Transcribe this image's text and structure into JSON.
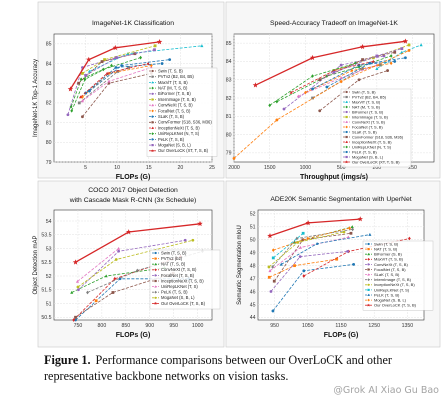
{
  "caption": {
    "prefix": "Figure 1.",
    "text": "Performance comparisons between our OverLoCK and other representative backbone networks on vision tasks."
  },
  "watermark": "@Grok AI Xiao Gu Bao",
  "chart_data": [
    {
      "type": "line",
      "title": "ImageNet-1K Classification",
      "xlabel": "FLOPs (G)",
      "ylabel": "ImageNet-1K Top-1 Accuracy",
      "xlim": [
        0,
        25
      ],
      "ylim": [
        79,
        85.5
      ],
      "xticks": [
        5,
        10,
        15,
        20,
        25
      ],
      "yticks": [
        79,
        80,
        81,
        82,
        83,
        84,
        85
      ],
      "grid": true,
      "legend_position": "right",
      "series": [
        {
          "name": "Swin (T, S, B)",
          "color": "#8c564b",
          "x": [
            4.5,
            8.7,
            15.4
          ],
          "y": [
            81.3,
            83.0,
            83.5
          ]
        },
        {
          "name": "PVTv2 (B2, B4, B5)",
          "color": "#7f7f7f",
          "x": [
            4.0,
            10.1,
            11.8
          ],
          "y": [
            82.0,
            83.6,
            83.8
          ]
        },
        {
          "name": "MaxViT (T, S, B)",
          "color": "#17becf",
          "x": [
            5.6,
            11.7,
            23.4
          ],
          "y": [
            83.6,
            84.5,
            84.9
          ]
        },
        {
          "name": "NAT (M, T, S, B)",
          "color": "#2ca02c",
          "x": [
            2.7,
            4.3,
            7.8,
            13.7
          ],
          "y": [
            81.8,
            83.2,
            83.7,
            84.3
          ]
        },
        {
          "name": "BiFormer (T, S, B)",
          "color": "#9467bd",
          "x": [
            2.2,
            4.5,
            9.8
          ],
          "y": [
            81.4,
            83.8,
            84.3
          ]
        },
        {
          "name": "InternImage (T, S, B)",
          "color": "#bcbd22",
          "x": [
            4.5,
            8.0,
            16.0
          ],
          "y": [
            83.5,
            84.2,
            84.9
          ]
        },
        {
          "name": "ConvNeXt (T, S, B)",
          "color": "#e377c2",
          "x": [
            4.5,
            8.7,
            15.4
          ],
          "y": [
            82.1,
            83.1,
            83.8
          ]
        },
        {
          "name": "FocalNet (T, S, B)",
          "color": "#ff7f0e",
          "x": [
            4.5,
            8.7,
            15.4
          ],
          "y": [
            82.3,
            83.5,
            83.9
          ]
        },
        {
          "name": "SLaK (T, S, B)",
          "color": "#1f77b4",
          "x": [
            5.0,
            9.8,
            17.1
          ],
          "y": [
            82.5,
            83.8,
            84.0
          ]
        },
        {
          "name": "ConvFormer (S18, S36, M36)",
          "color": "#8c564b",
          "x": [
            3.9,
            7.6,
            12.8
          ],
          "y": [
            83.0,
            84.1,
            84.5
          ]
        },
        {
          "name": "InceptionNeXt (T, S, B)",
          "color": "#d62728",
          "x": [
            4.2,
            8.4,
            14.9
          ],
          "y": [
            82.3,
            83.5,
            84.0
          ]
        },
        {
          "name": "UniRepLKNet (N, T, S)",
          "color": "#2ca02c",
          "x": [
            2.8,
            4.9,
            9.1
          ],
          "y": [
            81.6,
            83.2,
            83.9
          ]
        },
        {
          "name": "PeLK (T, S, B)",
          "color": "#1f77b4",
          "x": [
            5.6,
            10.7,
            18.3
          ],
          "y": [
            82.6,
            83.9,
            84.2
          ]
        },
        {
          "name": "MogaNet (S, B, L)",
          "color": "#9467bd",
          "x": [
            5.0,
            9.9,
            15.9
          ],
          "y": [
            83.4,
            84.3,
            84.7
          ]
        },
        {
          "name": "Our OverLoCK (XT, T, S, B)",
          "color": "#d62728",
          "x": [
            2.6,
            5.5,
            9.7,
            16.7
          ],
          "y": [
            82.7,
            84.2,
            84.8,
            85.1
          ]
        }
      ]
    },
    {
      "type": "line",
      "title": "Speed-Accuracy Tradeoff on ImageNet-1K",
      "xlabel": "Throughput (imgs/s)",
      "ylabel": "",
      "xlim": [
        0,
        280
      ],
      "ylim": [
        78.5,
        85.5
      ],
      "xticks": [
        0,
        50,
        100,
        150,
        200,
        250
      ],
      "xticklabels": [
        "2000",
        "1500",
        "1000",
        "500",
        "200",
        "250"
      ],
      "yticks": [
        79,
        80,
        81,
        82,
        83,
        84,
        85
      ],
      "grid": true,
      "legend_position": "right",
      "series": [
        {
          "name": "Swin (T, S, B)",
          "color": "#8c564b",
          "x": [
            120,
            175,
            215
          ],
          "y": [
            81.3,
            83.0,
            83.5
          ]
        },
        {
          "name": "PVTv2 (B2, B4, B5)",
          "color": "#7f7f7f",
          "x": [
            110,
            180,
            205
          ],
          "y": [
            82.0,
            83.6,
            83.8
          ]
        },
        {
          "name": "MaxViT (T, S, B)",
          "color": "#17becf",
          "x": [
            200,
            235,
            262
          ],
          "y": [
            83.6,
            84.5,
            84.9
          ]
        },
        {
          "name": "NAT (M, T, S, B)",
          "color": "#2ca02c",
          "x": [
            60,
            130,
            175,
            220
          ],
          "y": [
            81.8,
            83.2,
            83.7,
            84.3
          ]
        },
        {
          "name": "BiFormer (T, S, B)",
          "color": "#9467bd",
          "x": [
            70,
            150,
            210
          ],
          "y": [
            81.4,
            83.8,
            84.3
          ]
        },
        {
          "name": "InternImage (T, S, B)",
          "color": "#bcbd22",
          "x": [
            140,
            195,
            245
          ],
          "y": [
            83.5,
            84.2,
            84.9
          ]
        },
        {
          "name": "ConvNeXt (T, S, B)",
          "color": "#e377c2",
          "x": [
            90,
            150,
            200
          ],
          "y": [
            82.1,
            83.1,
            83.8
          ]
        },
        {
          "name": "FocalNet (T, S, B)",
          "color": "#ff7f0e",
          "x": [
            100,
            165,
            220
          ],
          "y": [
            82.3,
            83.5,
            83.9
          ]
        },
        {
          "name": "SLaK (T, S, B)",
          "color": "#1f77b4",
          "x": [
            110,
            175,
            225
          ],
          "y": [
            82.5,
            83.8,
            84.0
          ]
        },
        {
          "name": "ConvFormer (S18, S36, M36)",
          "color": "#8c564b",
          "x": [
            120,
            180,
            225
          ],
          "y": [
            83.0,
            84.1,
            84.5
          ]
        },
        {
          "name": "InceptionNeXt (T, S, B)",
          "color": "#d62728",
          "x": [
            80,
            140,
            195
          ],
          "y": [
            82.3,
            83.5,
            84.0
          ]
        },
        {
          "name": "UniRepLKNet (N, T, S)",
          "color": "#2ca02c",
          "x": [
            50,
            110,
            170
          ],
          "y": [
            81.6,
            83.2,
            83.9
          ]
        },
        {
          "name": "PeLK (T, S, B)",
          "color": "#1f77b4",
          "x": [
            130,
            190,
            240
          ],
          "y": [
            82.6,
            83.9,
            84.2
          ]
        },
        {
          "name": "MogaNet (S, B, L)",
          "color": "#9467bd",
          "x": [
            140,
            200,
            235
          ],
          "y": [
            83.4,
            84.3,
            84.7
          ]
        },
        {
          "name": "Our OverLoCK (XT, T, S, B)",
          "color": "#d62728",
          "x": [
            30,
            110,
            180,
            240
          ],
          "y": [
            82.7,
            84.2,
            84.8,
            85.1
          ]
        },
        {
          "name": "",
          "color": "#ff7f0e",
          "x": [
            0,
            60,
            150,
            245
          ],
          "y": [
            78.7,
            80.8,
            82.9,
            84.6
          ]
        }
      ]
    },
    {
      "type": "line",
      "title": "COCO 2017 Object Detection",
      "subtitle": "with Cascade Mask R-CNN (3x Schedule)",
      "xlabel": "FLOPs (G)",
      "ylabel": "Object Detection mAP",
      "xlim": [
        700,
        1030
      ],
      "ylim": [
        50.4,
        54.4
      ],
      "xticks": [
        750,
        800,
        850,
        900,
        950,
        1000
      ],
      "yticks": [
        50.5,
        51.0,
        51.5,
        52.0,
        52.5,
        53.0,
        53.5,
        54.0
      ],
      "grid": true,
      "legend_position": "center-right",
      "series": [
        {
          "name": "Swin (T, S, B)",
          "color": "#1f77b4",
          "x": [
            745,
            838,
            982
          ],
          "y": [
            50.4,
            51.9,
            51.9
          ]
        },
        {
          "name": "PVTv2 (b2)",
          "color": "#ff7f0e",
          "x": [
            788
          ],
          "y": [
            51.1
          ]
        },
        {
          "name": "NAT (T, S, B)",
          "color": "#2ca02c",
          "x": [
            737,
            809,
            931
          ],
          "y": [
            51.4,
            52.0,
            52.3
          ]
        },
        {
          "name": "ConvNeXt (T, S, B)",
          "color": "#d62728",
          "x": [
            741,
            827,
            964
          ],
          "y": [
            50.4,
            51.9,
            52.7
          ]
        },
        {
          "name": "FocalNet (T, S, B)",
          "color": "#9467bd",
          "x": [
            751,
            835,
            974
          ],
          "y": [
            51.5,
            52.9,
            53.3
          ]
        },
        {
          "name": "InceptionNeXt (T, S, B)",
          "color": "#8c564b",
          "x": [
            745,
            823,
            949
          ],
          "y": [
            50.5,
            51.4,
            52.1
          ]
        },
        {
          "name": "UniRepLKNet (T, S)",
          "color": "#e377c2",
          "x": [
            749,
            835
          ],
          "y": [
            51.8,
            53.0
          ]
        },
        {
          "name": "PeLK (T, S, B)",
          "color": "#7f7f7f",
          "x": [
            770,
            874,
            1010
          ],
          "y": [
            51.4,
            52.2,
            52.9
          ]
        },
        {
          "name": "MogaNet (S, B, L)",
          "color": "#bcbd22",
          "x": [
            750,
            830,
            990
          ],
          "y": [
            51.6,
            52.6,
            53.3
          ]
        },
        {
          "name": "Our OverLoCK (T, S, B)",
          "color": "#d62728",
          "x": [
            745,
            856,
            1005
          ],
          "y": [
            52.5,
            53.6,
            53.9
          ]
        }
      ]
    },
    {
      "type": "line",
      "title": "ADE20K Semantic Segmentation with UperNet",
      "xlabel": "FLOPs (G)",
      "ylabel": "Semantic Segmentation mIoU",
      "xlim": [
        900,
        1400
      ],
      "ylim": [
        43.8,
        52.3
      ],
      "xticks": [
        950,
        1050,
        1150,
        1250,
        1350
      ],
      "yticks": [
        44,
        45,
        46,
        47,
        48,
        49,
        50,
        51,
        52
      ],
      "grid": true,
      "legend_position": "right",
      "series": [
        {
          "name": "Swin (T, S, B)",
          "color": "#1f77b4",
          "x": [
            945,
            1038,
            1188
          ],
          "y": [
            44.5,
            47.6,
            48.1
          ]
        },
        {
          "name": "NAT (T, S, B)",
          "color": "#ff7f0e",
          "x": [
            934,
            1010,
            1137
          ],
          "y": [
            47.1,
            48.0,
            48.5
          ]
        },
        {
          "name": "BiFormer (S, B)",
          "color": "#2ca02c",
          "x": [
            1010,
            1184
          ],
          "y": [
            49.8,
            51.0
          ]
        },
        {
          "name": "MaxViT (T, S, B)",
          "color": "#d62728",
          "x": [
            1038,
            1173,
            1356
          ],
          "y": [
            47.2,
            49.1,
            50.1
          ]
        },
        {
          "name": "ConvNeXt (T, S, B)",
          "color": "#9467bd",
          "x": [
            939,
            1027,
            1170
          ],
          "y": [
            46.0,
            48.7,
            49.1
          ]
        },
        {
          "name": "FocalNet (T, S, B)",
          "color": "#8c564b",
          "x": [
            949,
            1035,
            1180
          ],
          "y": [
            46.8,
            50.0,
            50.5
          ]
        },
        {
          "name": "SLaK (T, S, B)",
          "color": "#e377c2",
          "x": [
            936,
            1028,
            1172
          ],
          "y": [
            47.6,
            49.4,
            50.2
          ]
        },
        {
          "name": "InternImage (T, S, B)",
          "color": "#7f7f7f",
          "x": [
            944,
            1017,
            1185
          ],
          "y": [
            47.9,
            50.1,
            50.8
          ]
        },
        {
          "name": "InceptionNeXt (T, S, B)",
          "color": "#bcbd22",
          "x": [
            933,
            1020,
            1159
          ],
          "y": [
            47.9,
            49.8,
            50.6
          ]
        },
        {
          "name": "UniRepLKNet (T, S)",
          "color": "#17becf",
          "x": [
            946,
            1036
          ],
          "y": [
            48.6,
            50.5
          ]
        },
        {
          "name": "PeLK (T, S, B)",
          "color": "#1f77b4",
          "x": [
            970,
            1078,
            1237
          ],
          "y": [
            48.1,
            49.7,
            50.4
          ]
        },
        {
          "name": "MogaNet (S, B, L)",
          "color": "#ff7f0e",
          "x": [
            946,
            1050,
            1176
          ],
          "y": [
            49.2,
            50.1,
            50.9
          ]
        },
        {
          "name": "Our OverLoCK (T, S, B)",
          "color": "#d62728",
          "x": [
            936,
            1051,
            1208
          ],
          "y": [
            50.3,
            51.3,
            51.6
          ]
        }
      ]
    }
  ]
}
